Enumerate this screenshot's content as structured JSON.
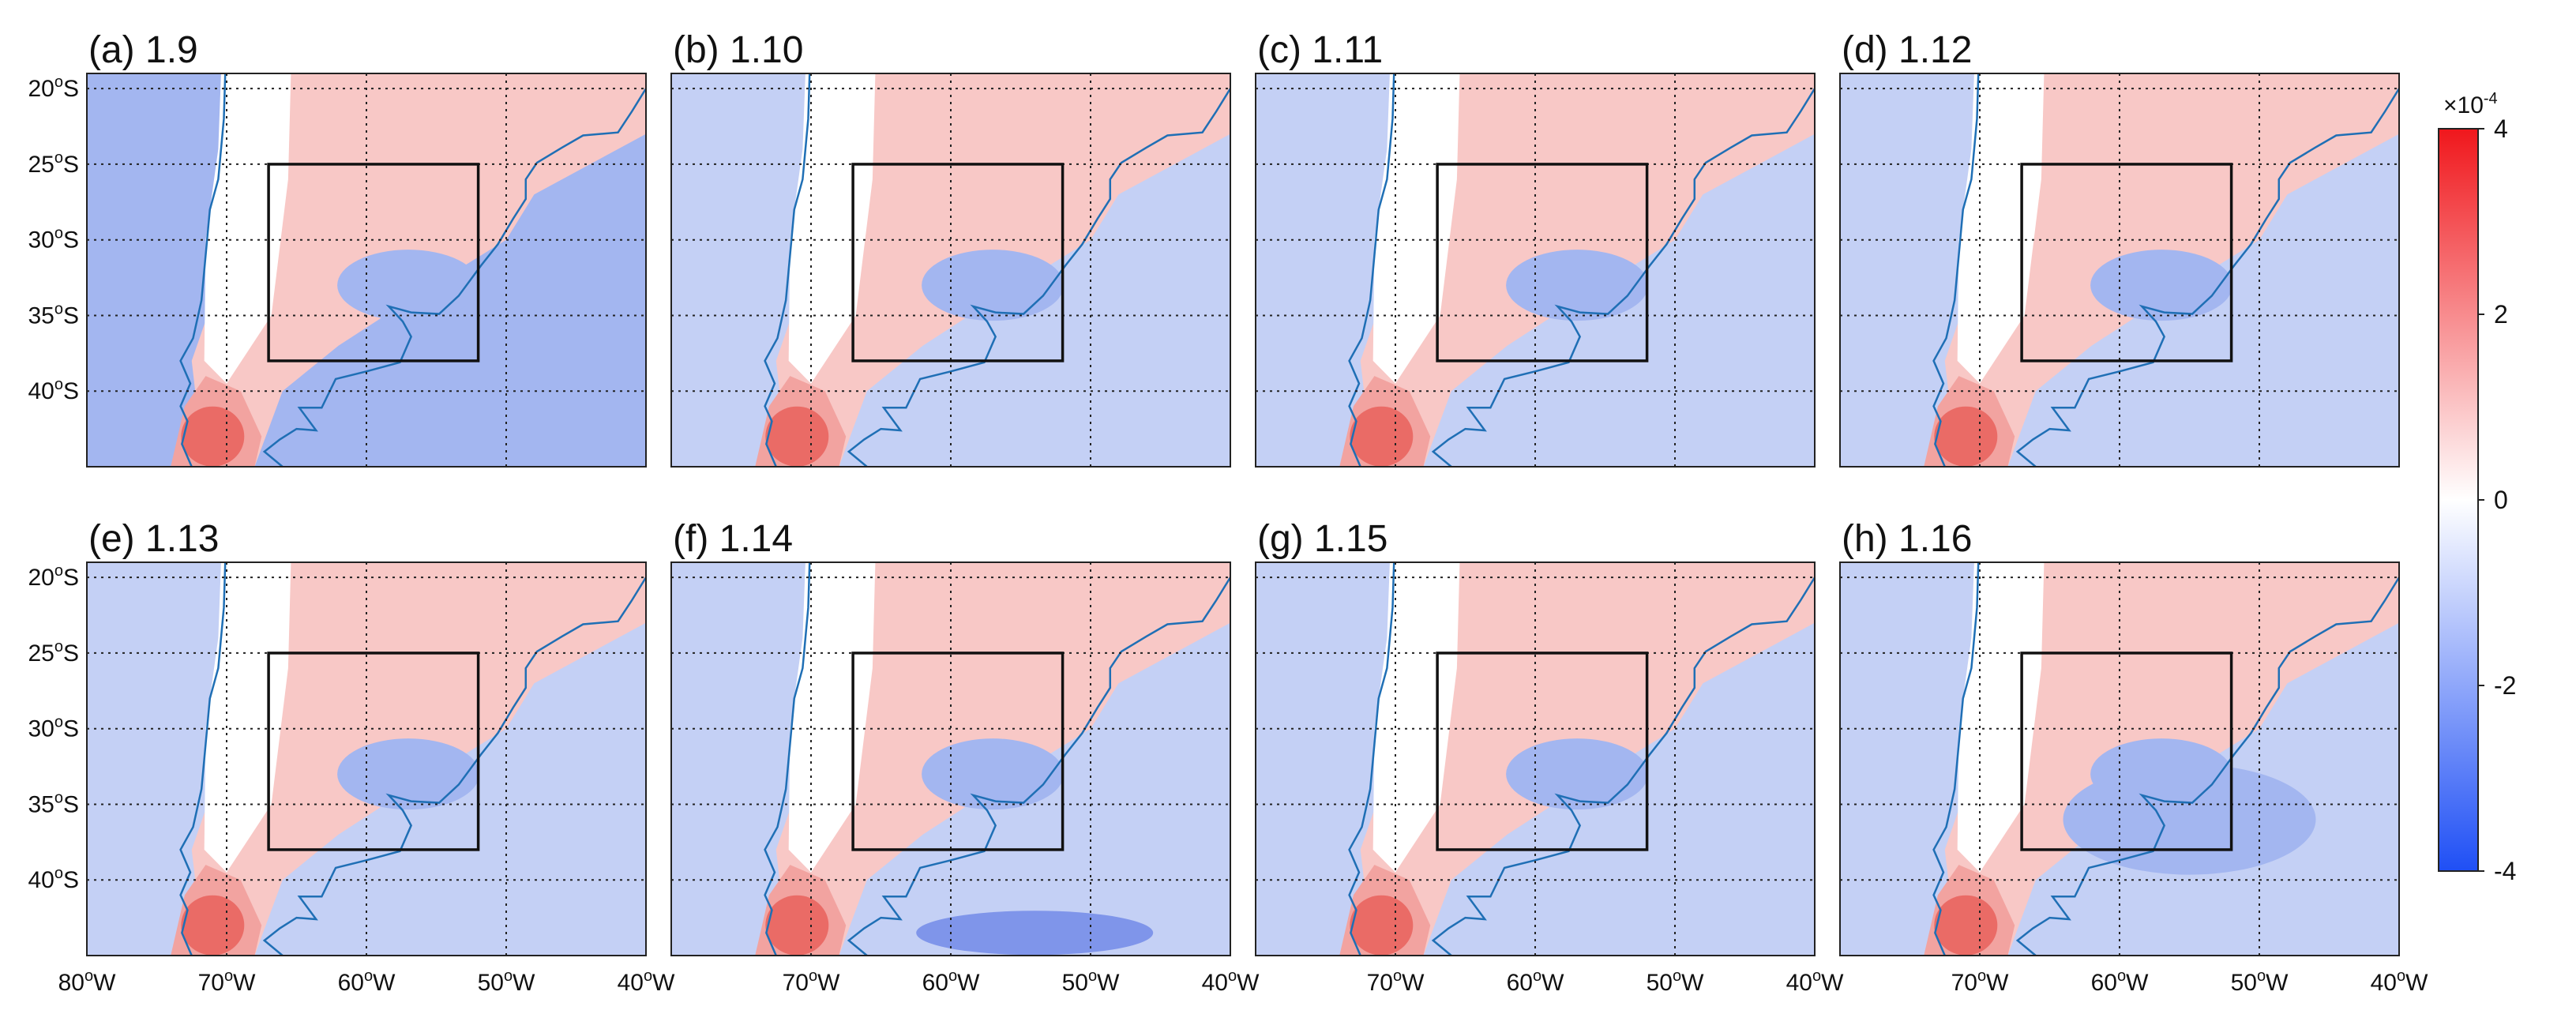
{
  "chart_data": {
    "type": "heatmap",
    "panels": [
      {
        "id": "a",
        "title": "(a) 1.9"
      },
      {
        "id": "b",
        "title": "(b) 1.10"
      },
      {
        "id": "c",
        "title": "(c) 1.11"
      },
      {
        "id": "d",
        "title": "(d) 1.12"
      },
      {
        "id": "e",
        "title": "(e) 1.13"
      },
      {
        "id": "f",
        "title": "(f) 1.14"
      },
      {
        "id": "g",
        "title": "(g) 1.15"
      },
      {
        "id": "h",
        "title": "(h) 1.16"
      }
    ],
    "lon_range": [
      -80,
      -40
    ],
    "lat_range": [
      -45,
      -19
    ],
    "x_ticks": [
      {
        "value": -80,
        "num": "80",
        "deg": "o",
        "hemi": "W"
      },
      {
        "value": -70,
        "num": "70",
        "deg": "o",
        "hemi": "W"
      },
      {
        "value": -60,
        "num": "60",
        "deg": "o",
        "hemi": "W"
      },
      {
        "value": -50,
        "num": "50",
        "deg": "o",
        "hemi": "W"
      },
      {
        "value": -40,
        "num": "40",
        "deg": "o",
        "hemi": "W"
      }
    ],
    "y_ticks": [
      {
        "value": -20,
        "num": "20",
        "deg": "o",
        "hemi": "S"
      },
      {
        "value": -25,
        "num": "25",
        "deg": "o",
        "hemi": "S"
      },
      {
        "value": -30,
        "num": "30",
        "deg": "o",
        "hemi": "S"
      },
      {
        "value": -35,
        "num": "35",
        "deg": "o",
        "hemi": "S"
      },
      {
        "value": -40,
        "num": "40",
        "deg": "o",
        "hemi": "S"
      }
    ],
    "grid": "dotted",
    "box_region": {
      "lon": [
        -67,
        -52
      ],
      "lat": [
        -38,
        -25
      ]
    },
    "colorbar": {
      "min": -4,
      "max": 4,
      "ticks": [
        "4",
        "2",
        "0",
        "-2",
        "-4"
      ],
      "scale_base": "×10",
      "scale_exp": "-4",
      "colors": {
        "max": "#f0171c",
        "mid": "#ffffff",
        "min": "#1f4ff5"
      }
    },
    "coastline_color": "#1f6fb5"
  }
}
